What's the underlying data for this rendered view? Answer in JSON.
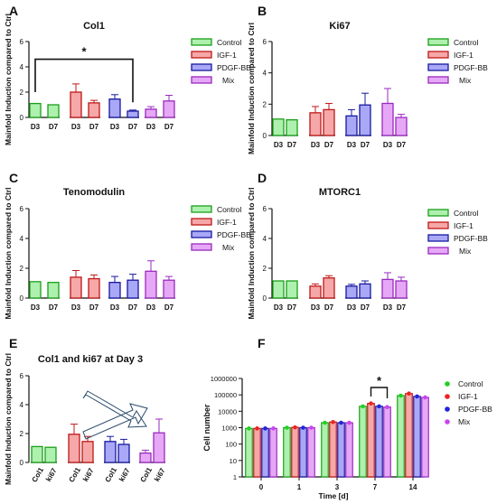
{
  "figure": {
    "y_axis_label": "Mainfold Induction compared to Ctrl"
  },
  "colors": {
    "Control": "#22d022",
    "IGF-1": "#ee2222",
    "PDGF-BB": "#2222dd",
    "Mix": "#cc44ee",
    "edge_Control": "#1aa01a",
    "edge_IGF-1": "#c01818",
    "edge_PDGF-BB": "#1818a0",
    "edge_Mix": "#9a2ac0",
    "fill_Control": "#aef0ae",
    "fill_IGF-1": "#f6a8a8",
    "fill_PDGF-BB": "#a8a8f6",
    "fill_Mix": "#e6a8f6"
  },
  "legend_items": [
    "Control",
    "IGF-1",
    "PDGF-BB",
    "Mix"
  ],
  "chart_data": [
    {
      "panel": "A",
      "type": "bar",
      "title": "Col1",
      "ylabel": "Mainfold Induction compared to Ctrl",
      "ylim": [
        0,
        6
      ],
      "yticks": [
        0,
        2,
        4,
        6
      ],
      "tick_labels": [
        "D3",
        "D7"
      ],
      "legend": "right",
      "series": [
        {
          "name": "Control",
          "values": [
            1.1,
            1.0
          ],
          "errors": [
            0.05,
            0.05
          ]
        },
        {
          "name": "IGF-1",
          "values": [
            2.0,
            1.15
          ],
          "errors": [
            0.65,
            0.2
          ]
        },
        {
          "name": "PDGF-BB",
          "values": [
            1.45,
            0.5
          ],
          "errors": [
            0.35,
            0.08
          ]
        },
        {
          "name": "Mix",
          "values": [
            0.65,
            1.3
          ],
          "errors": [
            0.2,
            0.45
          ]
        }
      ],
      "significance": [
        {
          "from_series": "Control",
          "from_tick": 0,
          "to_series": "PDGF-BB",
          "to_tick": 1,
          "label": "*"
        }
      ]
    },
    {
      "panel": "B",
      "type": "bar",
      "title": "Ki67",
      "ylabel": "Mainfold Induction compared to Ctrl",
      "ylim": [
        0,
        6
      ],
      "yticks": [
        0,
        2,
        4,
        6
      ],
      "tick_labels": [
        "D3",
        "D7"
      ],
      "legend": "right",
      "series": [
        {
          "name": "Control",
          "values": [
            1.05,
            1.0
          ],
          "errors": [
            0.05,
            0.05
          ]
        },
        {
          "name": "IGF-1",
          "values": [
            1.45,
            1.65
          ],
          "errors": [
            0.4,
            0.4
          ]
        },
        {
          "name": "PDGF-BB",
          "values": [
            1.25,
            1.95
          ],
          "errors": [
            0.4,
            0.75
          ]
        },
        {
          "name": "Mix",
          "values": [
            2.05,
            1.15
          ],
          "errors": [
            0.95,
            0.2
          ]
        }
      ]
    },
    {
      "panel": "C",
      "type": "bar",
      "title": "Tenomodulin",
      "ylabel": "Mainfold Induction compared to Ctrl",
      "ylim": [
        0,
        6
      ],
      "yticks": [
        0,
        2,
        4,
        6
      ],
      "tick_labels": [
        "D3",
        "D7"
      ],
      "legend": "right",
      "series": [
        {
          "name": "Control",
          "values": [
            1.1,
            1.05
          ],
          "errors": [
            0.05,
            0.05
          ]
        },
        {
          "name": "IGF-1",
          "values": [
            1.4,
            1.3
          ],
          "errors": [
            0.45,
            0.25
          ]
        },
        {
          "name": "PDGF-BB",
          "values": [
            1.05,
            1.2
          ],
          "errors": [
            0.4,
            0.4
          ]
        },
        {
          "name": "Mix",
          "values": [
            1.8,
            1.2
          ],
          "errors": [
            0.7,
            0.25
          ]
        }
      ]
    },
    {
      "panel": "D",
      "type": "bar",
      "title": "MTORC1",
      "ylabel": "Mainfold Induction compared to Ctrl",
      "ylim": [
        0,
        6
      ],
      "yticks": [
        0,
        2,
        4,
        6
      ],
      "tick_labels": [
        "D3",
        "D7"
      ],
      "legend": "right",
      "series": [
        {
          "name": "Control",
          "values": [
            1.15,
            1.15
          ],
          "errors": [
            0.05,
            0.05
          ]
        },
        {
          "name": "IGF-1",
          "values": [
            0.8,
            1.35
          ],
          "errors": [
            0.15,
            0.15
          ]
        },
        {
          "name": "PDGF-BB",
          "values": [
            0.8,
            0.95
          ],
          "errors": [
            0.12,
            0.2
          ]
        },
        {
          "name": "Mix",
          "values": [
            1.25,
            1.15
          ],
          "errors": [
            0.45,
            0.25
          ]
        }
      ]
    },
    {
      "panel": "E",
      "type": "bar",
      "title": "Col1 and ki67 at Day 3",
      "ylabel": "Mainfold Induction compared to Ctrl",
      "ylim": [
        0,
        6
      ],
      "yticks": [
        0,
        2,
        4,
        6
      ],
      "tick_labels": [
        "Col1",
        "ki67"
      ],
      "series": [
        {
          "name": "Control",
          "values": [
            1.1,
            1.05
          ],
          "errors": [
            0.05,
            0.05
          ]
        },
        {
          "name": "IGF-1",
          "values": [
            1.95,
            1.45
          ],
          "errors": [
            0.7,
            0.35
          ]
        },
        {
          "name": "PDGF-BB",
          "values": [
            1.45,
            1.25
          ],
          "errors": [
            0.35,
            0.35
          ]
        },
        {
          "name": "Mix",
          "values": [
            0.65,
            2.05
          ],
          "errors": [
            0.2,
            0.95
          ]
        }
      ]
    },
    {
      "panel": "F",
      "type": "bar",
      "scale": "log",
      "xlabel": "Time [d]",
      "ylabel": "Cell number",
      "categories": [
        "0",
        "1",
        "3",
        "7",
        "14"
      ],
      "ylim": [
        1,
        1000000
      ],
      "yticks": [
        "1",
        "10",
        "100",
        "1000",
        "10000",
        "100000",
        "1000000"
      ],
      "legend": "right",
      "series": [
        {
          "name": "Control",
          "values": [
            900,
            1000,
            2000,
            20000,
            90000
          ]
        },
        {
          "name": "IGF-1",
          "values": [
            900,
            1050,
            2200,
            30000,
            120000
          ]
        },
        {
          "name": "PDGF-BB",
          "values": [
            900,
            1000,
            2000,
            20000,
            80000
          ]
        },
        {
          "name": "Mix",
          "values": [
            900,
            1000,
            2000,
            18000,
            70000
          ]
        }
      ],
      "significance": [
        {
          "category": "7",
          "from_series": "IGF-1",
          "to_series": "Mix",
          "label": "*"
        }
      ]
    }
  ]
}
